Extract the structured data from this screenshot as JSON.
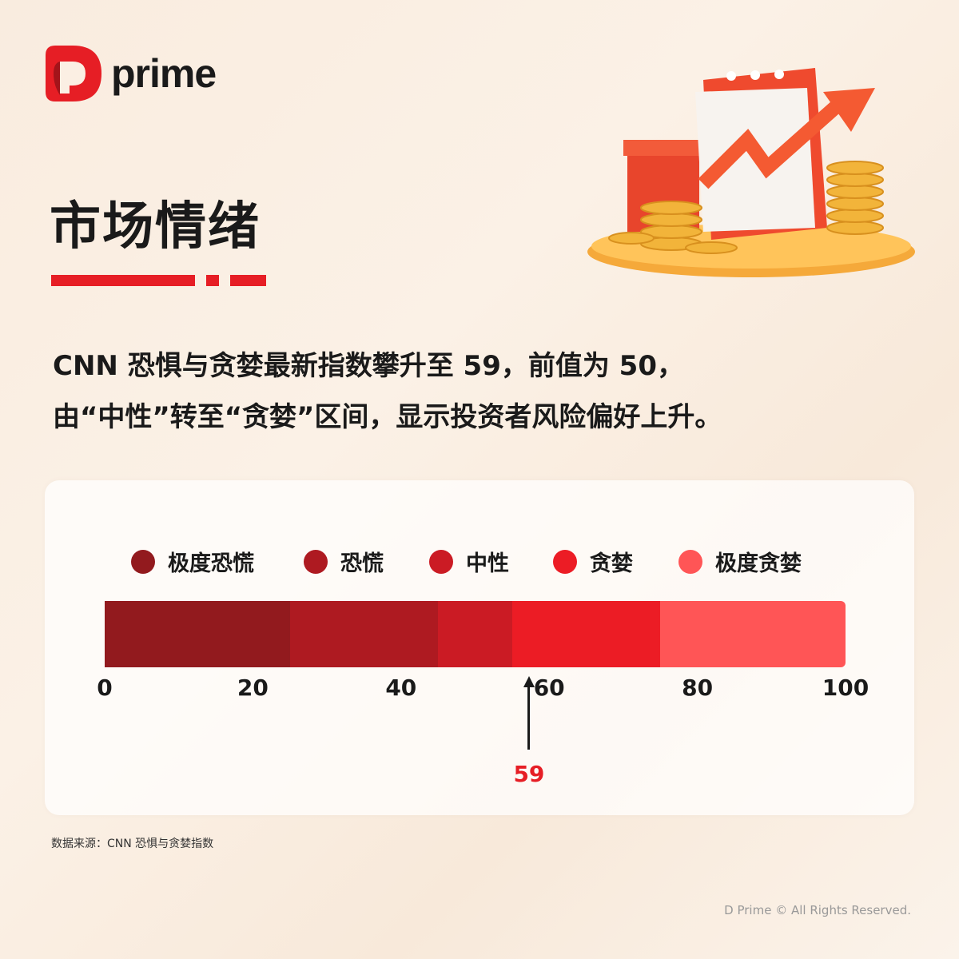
{
  "brand": {
    "logo_text": "prime",
    "accent": "#e61e25"
  },
  "title": "市场情绪",
  "description": [
    "CNN 恐惧与贪婪最新指数攀升至 59，前值为 50，",
    "由“中性”转至“贪婪”区间，显示投资者风险偏好上升。"
  ],
  "chart_data": {
    "type": "bar",
    "orientation": "horizontal-segmented",
    "xlim": [
      0,
      100
    ],
    "ticks": [
      0,
      20,
      40,
      60,
      80,
      100
    ],
    "segments": [
      {
        "name": "极度恐慌",
        "from": 0,
        "to": 25,
        "color": "#921A1E"
      },
      {
        "name": "恐慌",
        "from": 25,
        "to": 45,
        "color": "#AE1A21"
      },
      {
        "name": "中性",
        "from": 45,
        "to": 55,
        "color": "#CB1B24"
      },
      {
        "name": "贪婪",
        "from": 55,
        "to": 75,
        "color": "#EC1C25"
      },
      {
        "name": "极度贪婪",
        "from": 75,
        "to": 100,
        "color": "#FF5556"
      }
    ],
    "marker": {
      "value": 59,
      "label": "59"
    },
    "legend": "top"
  },
  "source": "数据来源：CNN 恐惧与贪婪指数",
  "copyright": "D Prime © All Rights Reserved."
}
